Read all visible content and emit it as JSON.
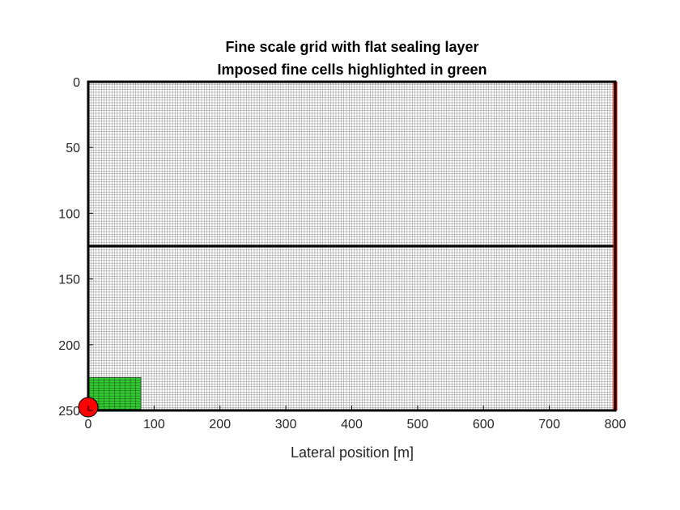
{
  "chart_data": {
    "type": "grid",
    "title_lines": [
      "Fine scale grid with flat sealing layer",
      "Imposed fine cells highlighted in green"
    ],
    "xlabel": "Lateral position [m]",
    "ylabel": "",
    "xlim": [
      0,
      800
    ],
    "ylim": [
      0,
      250
    ],
    "y_reversed": true,
    "x_ticks": [
      0,
      100,
      200,
      300,
      400,
      500,
      600,
      700,
      800
    ],
    "y_ticks": [
      0,
      50,
      100,
      150,
      200,
      250
    ],
    "fine_cell_size": [
      4,
      2
    ],
    "sealing_layer_depth": 125,
    "highlighted_region": {
      "x": [
        0,
        80
      ],
      "y": [
        225,
        250
      ],
      "color": "#33cc33"
    },
    "highlight_cell_size": [
      8,
      2
    ],
    "well": {
      "x": 0,
      "y": 250,
      "color": "#ff0000"
    },
    "right_boundary": {
      "x": 800,
      "color": "#ff0000"
    },
    "grid_line_color": "#8c8c8c"
  }
}
